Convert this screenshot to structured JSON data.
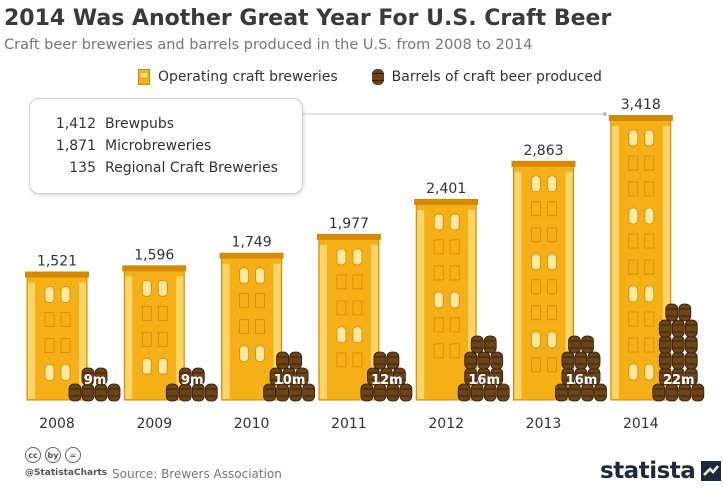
{
  "header": {
    "title": "2014 Was Another Great Year For U.S. Craft Beer",
    "subtitle": "Craft beer breweries and barrels produced in the U.S. from 2008 to 2014"
  },
  "legend": {
    "breweries": "Operating craft breweries",
    "barrels": "Barrels of craft beer produced"
  },
  "infobox": {
    "rows": [
      {
        "value": "1,412",
        "label": "Brewpubs"
      },
      {
        "value": "1,871",
        "label": "Microbreweries"
      },
      {
        "value": "135",
        "label": "Regional Craft Breweries"
      }
    ]
  },
  "chart_data": {
    "type": "bar",
    "title": "2014 Was Another Great Year For U.S. Craft Beer",
    "subtitle": "Craft beer breweries and barrels produced in the U.S. from 2008 to 2014",
    "categories": [
      "2008",
      "2009",
      "2010",
      "2011",
      "2012",
      "2013",
      "2014"
    ],
    "series": [
      {
        "name": "Operating craft breweries",
        "values": [
          1521,
          1596,
          1749,
          1977,
          2401,
          2863,
          3418
        ],
        "labels": [
          "1,521",
          "1,596",
          "1,749",
          "1,977",
          "2,401",
          "2,863",
          "3,418"
        ]
      },
      {
        "name": "Barrels of craft beer produced",
        "values": [
          9,
          9,
          10,
          12,
          16,
          16,
          22
        ],
        "unit": "million barrels",
        "labels": [
          "9m",
          "9m",
          "10m",
          "12m",
          "16m",
          "16m",
          "22m"
        ]
      }
    ],
    "xlabel": "",
    "ylabel": "",
    "grid": false,
    "legend_position": "top"
  },
  "footer": {
    "cc_icons": [
      "cc",
      "by",
      "="
    ],
    "handle": "@StatistaCharts",
    "source": "Source: Brewers Association",
    "brand": "statista"
  },
  "colors": {
    "building": "#f5b018",
    "building_light": "#fcd56a",
    "building_edge": "#d58a05",
    "window": "#ffe8a0",
    "barrel": "#6b4318",
    "barrel_dark": "#2e1c08",
    "text": "#333333"
  }
}
